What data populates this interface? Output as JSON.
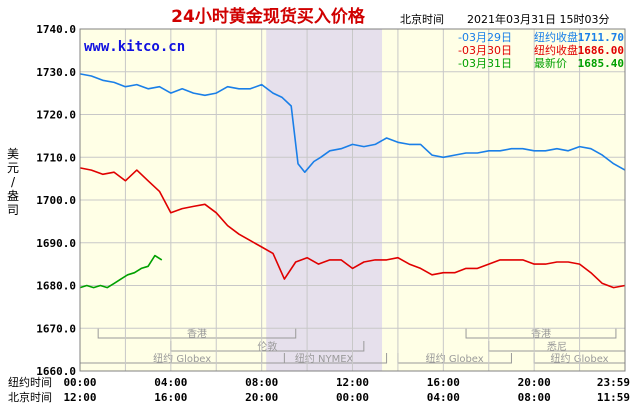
{
  "header": {
    "title": "24小时黄金现货买入价格",
    "timezone_label": "北京时间",
    "timestamp": "2021年03月31日 15时03分",
    "brand": "www.kitco.cn",
    "y_unit_label": "美元/盎司"
  },
  "legend": [
    {
      "key": "-03月29日",
      "label": "纽约收盘",
      "value": "1711.70",
      "color": "#1a7fe8"
    },
    {
      "key": "-03月30日",
      "label": "纽约收盘",
      "value": "1686.00",
      "color": "#e00000"
    },
    {
      "key": "-03月31日",
      "label": "最新价",
      "value": "1685.40",
      "color": "#00a000"
    }
  ],
  "axis_rows": [
    {
      "label": "纽约时间",
      "ticks": [
        "00:00",
        "04:00",
        "08:00",
        "12:00",
        "16:00",
        "20:00",
        "23:59"
      ]
    },
    {
      "label": "北京时间",
      "ticks": [
        "12:00",
        "16:00",
        "20:00",
        "00:00",
        "04:00",
        "08:00",
        "11:59"
      ]
    }
  ],
  "sessions": [
    {
      "label": "香港",
      "start": 0.8,
      "end": 9.5,
      "row": 0
    },
    {
      "label": "纽约 Globex",
      "start": 0,
      "end": 9,
      "row": 2
    },
    {
      "label": "伦敦",
      "start": 4,
      "end": 12.5,
      "row": 1
    },
    {
      "label": "纽约 NYMEX",
      "start": 8,
      "end": 13.5,
      "row": 2
    },
    {
      "label": "纽约 Globex",
      "start": 14,
      "end": 19,
      "row": 2
    },
    {
      "label": "香港",
      "start": 17,
      "end": 23.6,
      "row": 0
    },
    {
      "label": "悉尼",
      "start": 18,
      "end": 24,
      "row": 1
    },
    {
      "label": "纽约 Globex",
      "start": 20,
      "end": 24,
      "row": 2
    }
  ],
  "highlight": {
    "start": 8.2,
    "end": 13.3
  },
  "colors": {
    "plot_bg": "#ffffe6",
    "grid": "#c8c8c8",
    "highlight": "#e6e0ec",
    "session": "#9a9a9a",
    "title": "#d00000",
    "brand": "#1010e0"
  },
  "chart_data": {
    "type": "line",
    "title": "24小时黄金现货买入价格",
    "ylabel": "美元/盎司",
    "xlabel": "纽约时间",
    "xlim": [
      0,
      24
    ],
    "ylim": [
      1660,
      1740
    ],
    "yticks": [
      1660.0,
      1670.0,
      1680.0,
      1690.0,
      1700.0,
      1710.0,
      1720.0,
      1730.0,
      1740.0
    ],
    "series": [
      {
        "name": "03月29日",
        "color": "#1a7fe8",
        "x": [
          0,
          0.5,
          1,
          1.5,
          2,
          2.5,
          3,
          3.5,
          4,
          4.5,
          5,
          5.5,
          6,
          6.5,
          7,
          7.5,
          8,
          8.5,
          8.9,
          9.3,
          9.6,
          9.9,
          10.3,
          10.6,
          11,
          11.5,
          12,
          12.5,
          13,
          13.5,
          14,
          14.5,
          15,
          15.5,
          16,
          16.5,
          17,
          17.5,
          18,
          18.5,
          19,
          19.5,
          20,
          20.5,
          21,
          21.5,
          22,
          22.5,
          23,
          23.5,
          24
        ],
        "y": [
          1729.5,
          1729,
          1728,
          1727.5,
          1726.5,
          1727,
          1726,
          1726.5,
          1725,
          1726,
          1725,
          1724.5,
          1725,
          1726.5,
          1726,
          1726,
          1727,
          1725,
          1724,
          1722,
          1708.5,
          1706.5,
          1709,
          1710,
          1711.5,
          1712,
          1713,
          1712.5,
          1713,
          1714.5,
          1713.5,
          1713,
          1713,
          1710.5,
          1710,
          1710.5,
          1711,
          1711,
          1711.5,
          1711.5,
          1712,
          1712,
          1711.5,
          1711.5,
          1712,
          1711.5,
          1712.5,
          1712,
          1710.5,
          1708.5,
          1707
        ]
      },
      {
        "name": "03月30日",
        "color": "#e00000",
        "x": [
          0,
          0.5,
          1,
          1.5,
          2,
          2.5,
          3,
          3.5,
          4,
          4.5,
          5,
          5.5,
          6,
          6.5,
          7,
          7.5,
          8,
          8.5,
          9,
          9.5,
          10,
          10.5,
          11,
          11.5,
          12,
          12.5,
          13,
          13.5,
          14,
          14.5,
          15,
          15.5,
          16,
          16.5,
          17,
          17.5,
          18,
          18.5,
          19,
          19.5,
          20,
          20.5,
          21,
          21.5,
          22,
          22.5,
          23,
          23.5,
          24
        ],
        "y": [
          1707.5,
          1707,
          1706,
          1706.5,
          1704.5,
          1707,
          1704.5,
          1702,
          1697,
          1698,
          1698.5,
          1699,
          1697,
          1694,
          1692,
          1690.5,
          1689,
          1687.5,
          1681.5,
          1685.5,
          1686.5,
          1685,
          1686,
          1686,
          1684,
          1685.5,
          1686,
          1686,
          1686.5,
          1685,
          1684,
          1682.5,
          1683,
          1683,
          1684,
          1684,
          1685,
          1686,
          1686,
          1686,
          1685,
          1685,
          1685.5,
          1685.5,
          1685,
          1683,
          1680.5,
          1679.5,
          1680
        ]
      },
      {
        "name": "03月31日",
        "color": "#00a000",
        "x": [
          0,
          0.3,
          0.6,
          0.9,
          1.2,
          1.5,
          1.8,
          2.1,
          2.4,
          2.7,
          3.0,
          3.3,
          3.6
        ],
        "y": [
          1679.5,
          1680,
          1679.5,
          1680,
          1679.5,
          1680.5,
          1681.5,
          1682.5,
          1683,
          1684,
          1684.5,
          1687,
          1686
        ]
      }
    ]
  }
}
